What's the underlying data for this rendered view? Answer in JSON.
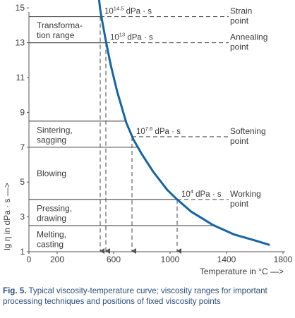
{
  "chart_data": {
    "type": "line",
    "title": "",
    "xlabel": "Temperature in °C —>",
    "ylabel": "lg η in dPa · s —>",
    "xlim": [
      0,
      1800
    ],
    "ylim": [
      1,
      15.7
    ],
    "xticks": [
      0,
      200,
      600,
      1000,
      1400,
      1800
    ],
    "yticks": [
      1,
      3,
      5,
      7,
      9,
      11,
      13,
      15
    ],
    "grid": false,
    "curve": {
      "x": [
        495,
        505,
        520,
        545,
        580,
        625,
        690,
        740,
        800,
        880,
        980,
        1050,
        1150,
        1300,
        1450,
        1600,
        1700
      ],
      "y": [
        15.6,
        14.9,
        14.2,
        13.1,
        11.7,
        10.2,
        8.4,
        7.45,
        6.6,
        5.6,
        4.55,
        4.0,
        3.3,
        2.55,
        2.0,
        1.65,
        1.4
      ]
    },
    "fixed_points": [
      {
        "label_base": "10",
        "label_exp": "14.5",
        "label_unit": "dPa · s",
        "name_line1": "Strain",
        "name_line2": "point",
        "y": 14.5,
        "x": 505
      },
      {
        "label_base": "10",
        "label_exp": "13",
        "label_unit": "dPa · s",
        "name_line1": "Annealing",
        "name_line2": "point",
        "y": 13,
        "x": 545
      },
      {
        "label_base": "10",
        "label_exp": "7.6",
        "label_unit": "dPa · s",
        "name_line1": "Softening",
        "name_line2": "point",
        "y": 7.6,
        "x": 730
      },
      {
        "label_base": "10",
        "label_exp": "4",
        "label_unit": "dPa · s",
        "name_line1": "Working",
        "name_line2": "point",
        "y": 4,
        "x": 1050
      }
    ],
    "ranges": [
      {
        "line1": "Transforma-",
        "line2": "tion range",
        "y_low": 13,
        "y_high": 14.5
      },
      {
        "line1": "Sintering,",
        "line2": "sagging",
        "y_low": 7,
        "y_high": 8.5
      },
      {
        "line1": "Blowing",
        "line2": "",
        "y_low": 4,
        "y_high": 7
      },
      {
        "line1": "Pressing,",
        "line2": "drawing",
        "y_low": 2.5,
        "y_high": 4
      },
      {
        "line1": "Melting,",
        "line2": "casting",
        "y_low": 1,
        "y_high": 2.5
      }
    ],
    "series_color": "#1565a3"
  },
  "caption": {
    "label": "Fig. 5.",
    "text": " Typical viscosity-temperature curve; viscosity ranges for important processing techniques and positions of fixed viscosity points"
  }
}
